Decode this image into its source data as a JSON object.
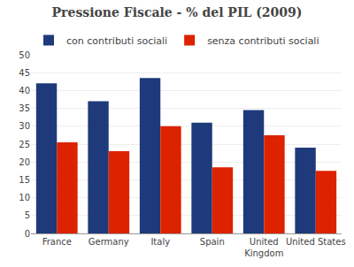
{
  "chart_data": {
    "type": "bar",
    "title": "Pressione Fiscale - % del PIL (2009)",
    "categories": [
      "France",
      "Germany",
      "Italy",
      "Spain",
      "United\nKingdom",
      "United States"
    ],
    "series": [
      {
        "name": "con contributi sociali",
        "color": "#1e3a7a",
        "values": [
          42,
          37,
          43.5,
          31,
          34.5,
          24
        ]
      },
      {
        "name": "senza contributi sociali",
        "color": "#dd2200",
        "values": [
          25.5,
          23,
          30,
          18.5,
          27.5,
          17.5
        ]
      }
    ],
    "ylim": [
      0,
      50
    ],
    "yticks": [
      0,
      5,
      10,
      15,
      20,
      25,
      30,
      35,
      40,
      45,
      50
    ],
    "grid": true,
    "legend": "upper left"
  }
}
